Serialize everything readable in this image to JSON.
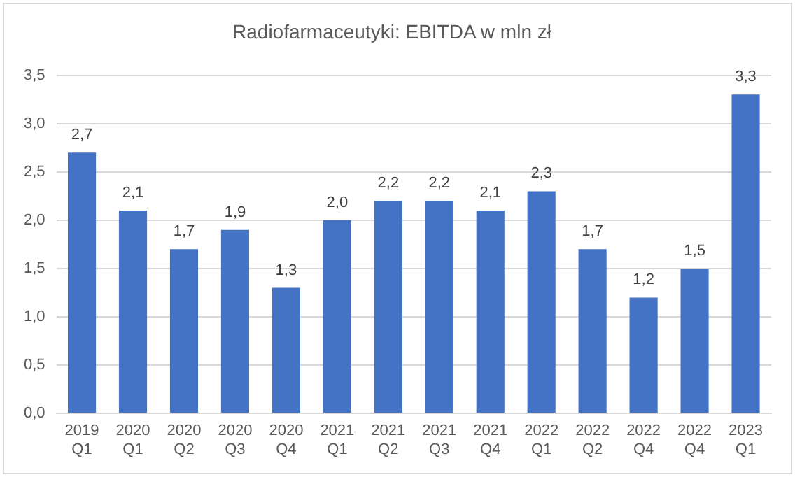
{
  "chart_data": {
    "type": "bar",
    "title": "Radiofarmaceutyki: EBITDA w mln zł",
    "categories": [
      "2019 Q1",
      "2020 Q1",
      "2020 Q2",
      "2020 Q3",
      "2020 Q4",
      "2021 Q1",
      "2021 Q2",
      "2021 Q3",
      "2021 Q4",
      "2022 Q1",
      "2022 Q2",
      "2022 Q4",
      "2022 Q4",
      "2023 Q1"
    ],
    "values": [
      2.7,
      2.1,
      1.7,
      1.9,
      1.3,
      2.0,
      2.2,
      2.2,
      2.1,
      2.3,
      1.7,
      1.2,
      1.5,
      3.3
    ],
    "value_labels": [
      "2,7",
      "2,1",
      "1,7",
      "1,9",
      "1,3",
      "2,0",
      "2,2",
      "2,2",
      "2,1",
      "2,3",
      "1,7",
      "1,2",
      "1,5",
      "3,3"
    ],
    "color": "#4472c4",
    "ylim": [
      0,
      3.5
    ],
    "yticks": [
      {
        "value": 0,
        "label": "0,0"
      },
      {
        "value": 0.5,
        "label": "0,5"
      },
      {
        "value": 1,
        "label": "1,0"
      },
      {
        "value": 1.5,
        "label": "1,5"
      },
      {
        "value": 2,
        "label": "2,0"
      },
      {
        "value": 2.5,
        "label": "2,5"
      },
      {
        "value": 3,
        "label": "3,0"
      },
      {
        "value": 3.5,
        "label": "3,5"
      }
    ],
    "grid": "y",
    "legend": false
  }
}
